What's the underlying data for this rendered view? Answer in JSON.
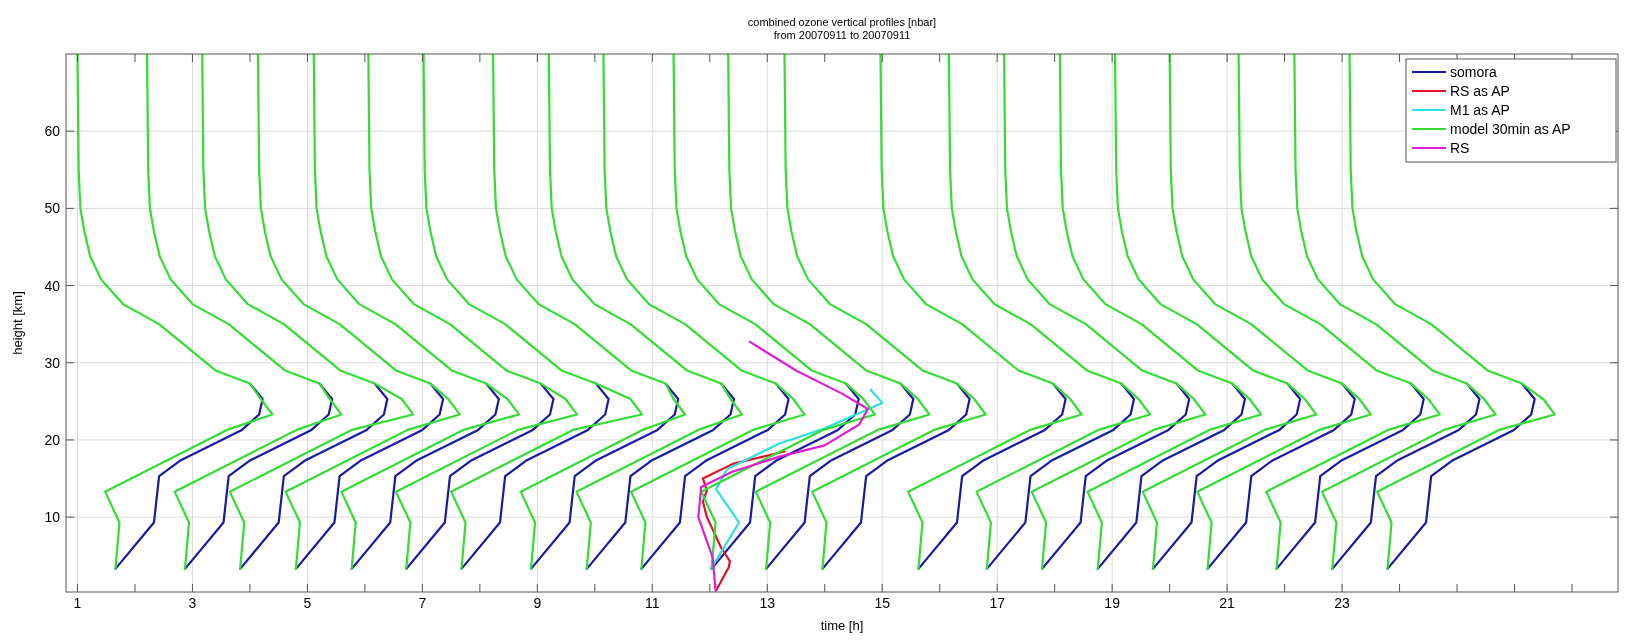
{
  "chart_data": {
    "type": "line",
    "title": "combined ozone vertical profiles [nbar]",
    "subtitle": "from 20070911 to 20070911",
    "xlabel": "time [h]",
    "ylabel": "height [km]",
    "xlim": [
      0.8,
      27.8
    ],
    "ylim": [
      0.3,
      70
    ],
    "xticks": [
      1,
      {
        "value": 2,
        "label": null
      },
      3,
      {
        "value": 4,
        "label": null
      },
      5,
      {
        "value": 6,
        "label": null
      },
      7,
      {
        "value": 8,
        "label": null
      },
      9,
      {
        "value": 10,
        "label": null
      },
      11,
      {
        "value": 12,
        "label": null
      },
      13,
      {
        "value": 14,
        "label": null
      },
      15,
      {
        "value": 16,
        "label": null
      },
      17,
      {
        "value": 18,
        "label": null
      },
      19,
      {
        "value": 20,
        "label": null
      },
      21,
      {
        "value": 22,
        "label": null
      },
      23,
      {
        "value": 24,
        "label": null
      },
      {
        "value": 25,
        "label": null
      },
      {
        "value": 26,
        "label": null
      },
      {
        "value": 27,
        "label": null
      }
    ],
    "yticks": [
      10,
      20,
      30,
      40,
      50,
      60
    ],
    "grid": true,
    "legend": "top right",
    "line_style": "solid",
    "marker": "none",
    "series": [
      {
        "name": "somora",
        "color": "#1a1aa0",
        "x": [
          1.66,
          2.33,
          2.42,
          2.78,
          3.86,
          4.16,
          4.22,
          4.0
        ],
        "values": [
          3.3,
          9.3,
          15.3,
          17.3,
          21.3,
          23.3,
          25.3,
          27.3
        ]
      },
      {
        "color": "#1a1aa0",
        "x": [
          2.87,
          3.54,
          3.63,
          3.99,
          5.07,
          5.37,
          5.43,
          5.21
        ],
        "values": [
          3.3,
          9.3,
          15.3,
          17.3,
          21.3,
          23.3,
          25.3,
          27.3
        ]
      },
      {
        "color": "#1a1aa0",
        "x": [
          3.83,
          4.5,
          4.59,
          4.95,
          6.03,
          6.33,
          6.39,
          6.17
        ],
        "values": [
          3.3,
          9.3,
          15.3,
          17.3,
          21.3,
          23.3,
          25.3,
          27.3
        ]
      },
      {
        "color": "#1a1aa0",
        "x": [
          4.8,
          5.47,
          5.56,
          5.92,
          7.0,
          7.3,
          7.36,
          7.14
        ],
        "values": [
          3.3,
          9.3,
          15.3,
          17.3,
          21.3,
          23.3,
          25.3,
          27.3
        ]
      },
      {
        "color": "#1a1aa0",
        "x": [
          5.77,
          6.44,
          6.53,
          6.89,
          7.97,
          8.27,
          8.33,
          8.11
        ],
        "values": [
          3.3,
          9.3,
          15.3,
          17.3,
          21.3,
          23.3,
          25.3,
          27.3
        ]
      },
      {
        "color": "#1a1aa0",
        "x": [
          6.72,
          7.39,
          7.48,
          7.84,
          8.92,
          9.22,
          9.28,
          9.06
        ],
        "values": [
          3.3,
          9.3,
          15.3,
          17.3,
          21.3,
          23.3,
          25.3,
          27.3
        ]
      },
      {
        "color": "#1a1aa0",
        "x": [
          7.68,
          8.35,
          8.44,
          8.8,
          9.88,
          10.18,
          10.24,
          10.02
        ],
        "values": [
          3.3,
          9.3,
          15.3,
          17.3,
          21.3,
          23.3,
          25.3,
          27.3
        ]
      },
      {
        "color": "#1a1aa0",
        "x": [
          8.89,
          9.56,
          9.65,
          10.01,
          11.09,
          11.39,
          11.45,
          11.23
        ],
        "values": [
          3.3,
          9.3,
          15.3,
          17.3,
          21.3,
          23.3,
          25.3,
          27.3
        ]
      },
      {
        "color": "#1a1aa0",
        "x": [
          9.86,
          10.53,
          10.62,
          10.98,
          12.06,
          12.36,
          12.42,
          12.2
        ],
        "values": [
          3.3,
          9.3,
          15.3,
          17.3,
          21.3,
          23.3,
          25.3,
          27.3
        ]
      },
      {
        "color": "#1a1aa0",
        "x": [
          10.81,
          11.48,
          11.57,
          11.93,
          13.01,
          13.31,
          13.37,
          13.15
        ],
        "values": [
          3.3,
          9.3,
          15.3,
          17.3,
          21.3,
          23.3,
          25.3,
          27.3
        ]
      },
      {
        "color": "#1a1aa0",
        "x": [
          12.03,
          12.7,
          12.79,
          13.15,
          14.23,
          14.53,
          14.59,
          14.37
        ],
        "values": [
          3.3,
          9.3,
          15.3,
          17.3,
          21.3,
          23.3,
          25.3,
          27.3
        ]
      },
      {
        "color": "#1a1aa0",
        "x": [
          12.98,
          13.65,
          13.74,
          14.1,
          15.18,
          15.48,
          15.54,
          15.32
        ],
        "values": [
          3.3,
          9.3,
          15.3,
          17.3,
          21.3,
          23.3,
          25.3,
          27.3
        ]
      },
      {
        "color": "#1a1aa0",
        "x": [
          13.96,
          14.63,
          14.72,
          15.08,
          16.16,
          16.46,
          16.52,
          16.3
        ],
        "values": [
          3.3,
          9.3,
          15.3,
          17.3,
          21.3,
          23.3,
          25.3,
          27.3
        ]
      },
      {
        "color": "#1a1aa0",
        "x": [
          15.63,
          16.3,
          16.39,
          16.75,
          17.83,
          18.13,
          18.19,
          17.97
        ],
        "values": [
          3.3,
          9.3,
          15.3,
          17.3,
          21.3,
          23.3,
          25.3,
          27.3
        ]
      },
      {
        "color": "#1a1aa0",
        "x": [
          16.82,
          17.49,
          17.58,
          17.94,
          19.02,
          19.32,
          19.38,
          19.16
        ],
        "values": [
          3.3,
          9.3,
          15.3,
          17.3,
          21.3,
          23.3,
          25.3,
          27.3
        ]
      },
      {
        "color": "#1a1aa0",
        "x": [
          17.78,
          18.45,
          18.54,
          18.9,
          19.98,
          20.28,
          20.34,
          20.12
        ],
        "values": [
          3.3,
          9.3,
          15.3,
          17.3,
          21.3,
          23.3,
          25.3,
          27.3
        ]
      },
      {
        "color": "#1a1aa0",
        "x": [
          18.75,
          19.42,
          19.51,
          19.87,
          20.95,
          21.25,
          21.31,
          21.09
        ],
        "values": [
          3.3,
          9.3,
          15.3,
          17.3,
          21.3,
          23.3,
          25.3,
          27.3
        ]
      },
      {
        "color": "#1a1aa0",
        "x": [
          19.71,
          20.38,
          20.47,
          20.83,
          21.91,
          22.21,
          22.27,
          22.05
        ],
        "values": [
          3.3,
          9.3,
          15.3,
          17.3,
          21.3,
          23.3,
          25.3,
          27.3
        ]
      },
      {
        "color": "#1a1aa0",
        "x": [
          20.66,
          21.33,
          21.42,
          21.78,
          22.86,
          23.16,
          23.22,
          23.0
        ],
        "values": [
          3.3,
          9.3,
          15.3,
          17.3,
          21.3,
          23.3,
          25.3,
          27.3
        ]
      },
      {
        "color": "#1a1aa0",
        "x": [
          21.86,
          22.53,
          22.62,
          22.98,
          24.06,
          24.36,
          24.42,
          24.2
        ],
        "values": [
          3.3,
          9.3,
          15.3,
          17.3,
          21.3,
          23.3,
          25.3,
          27.3
        ]
      },
      {
        "color": "#1a1aa0",
        "x": [
          22.83,
          23.5,
          23.59,
          23.95,
          25.03,
          25.33,
          25.39,
          25.17
        ],
        "values": [
          3.3,
          9.3,
          15.3,
          17.3,
          21.3,
          23.3,
          25.3,
          27.3
        ]
      },
      {
        "color": "#1a1aa0",
        "x": [
          23.79,
          24.46,
          24.55,
          24.91,
          25.99,
          26.29,
          26.35,
          26.13
        ],
        "values": [
          3.3,
          9.3,
          15.3,
          17.3,
          21.3,
          23.3,
          25.3,
          27.3
        ]
      },
      {
        "name": "RS as AP",
        "color": "#e0102a",
        "x": [
          12.11,
          12.33,
          12.35,
          12.2,
          11.95,
          11.88,
          11.95,
          11.88,
          12.4,
          13.3
        ],
        "values": [
          0.5,
          3.5,
          4.3,
          6,
          10,
          12,
          13.5,
          15,
          16.9,
          18.5
        ]
      },
      {
        "name": "M1 as AP",
        "color": "#30e0e0",
        "x": [
          12.02,
          12.51,
          12.11,
          12.3,
          13.2,
          14.0,
          15.0,
          14.8
        ],
        "values": [
          3.3,
          9.3,
          13.6,
          16.2,
          19.5,
          21.5,
          24.8,
          26.5
        ]
      },
      {
        "name": "model 30min as AP",
        "color": "#33dd33",
        "x": [
          1.66,
          1.73,
          1.48,
          3.6,
          4.39,
          4.19,
          4.0,
          3.4,
          2.42,
          1.79,
          1.41,
          1.22,
          1.12,
          1.05,
          1.02,
          1.0
        ],
        "values": [
          3.3,
          9.3,
          13.3,
          21.3,
          23.3,
          25.3,
          27.3,
          29,
          35,
          37.6,
          40.8,
          43.8,
          47,
          50,
          55,
          70
        ]
      },
      {
        "color": "#33dd33",
        "x": [
          2.87,
          2.94,
          2.69,
          4.81,
          5.59,
          5.39,
          5.21,
          4.61,
          3.63,
          3.0,
          2.62,
          2.43,
          2.33,
          2.26,
          2.23,
          2.21
        ],
        "values": [
          3.3,
          9.3,
          13.3,
          21.3,
          23.3,
          25.3,
          27.3,
          29,
          35,
          37.6,
          40.8,
          43.8,
          47,
          50,
          55,
          70
        ]
      },
      {
        "color": "#33dd33",
        "x": [
          3.83,
          3.9,
          3.65,
          5.77,
          6.84,
          6.64,
          6.17,
          5.57,
          4.59,
          3.96,
          3.58,
          3.39,
          3.29,
          3.22,
          3.19,
          3.17
        ],
        "values": [
          3.3,
          9.3,
          13.3,
          21.3,
          23.3,
          25.3,
          27.3,
          29,
          35,
          37.6,
          40.8,
          43.8,
          47,
          50,
          55,
          70
        ]
      },
      {
        "color": "#33dd33",
        "x": [
          4.8,
          4.87,
          4.62,
          6.74,
          7.65,
          7.45,
          7.14,
          6.54,
          5.56,
          4.93,
          4.55,
          4.36,
          4.26,
          4.19,
          4.16,
          4.14
        ],
        "values": [
          3.3,
          9.3,
          13.3,
          21.3,
          23.3,
          25.3,
          27.3,
          29,
          35,
          37.6,
          40.8,
          43.8,
          47,
          50,
          55,
          70
        ]
      },
      {
        "color": "#33dd33",
        "x": [
          5.77,
          5.84,
          5.59,
          7.71,
          8.68,
          8.48,
          8.11,
          7.51,
          6.53,
          5.9,
          5.52,
          5.33,
          5.23,
          5.16,
          5.13,
          5.11
        ],
        "values": [
          3.3,
          9.3,
          13.3,
          21.3,
          23.3,
          25.3,
          27.3,
          29,
          35,
          37.6,
          40.8,
          43.8,
          47,
          50,
          55,
          70
        ]
      },
      {
        "color": "#33dd33",
        "x": [
          6.72,
          6.79,
          6.54,
          8.66,
          9.69,
          9.49,
          9.06,
          8.46,
          7.48,
          6.85,
          6.47,
          6.28,
          6.18,
          6.11,
          6.08,
          6.06
        ],
        "values": [
          3.3,
          9.3,
          13.3,
          21.3,
          23.3,
          25.3,
          27.3,
          29,
          35,
          37.6,
          40.8,
          43.8,
          47,
          50,
          55,
          70
        ]
      },
      {
        "color": "#33dd33",
        "x": [
          7.68,
          7.75,
          7.5,
          9.62,
          10.82,
          10.62,
          10.02,
          9.42,
          8.44,
          7.81,
          7.43,
          7.24,
          7.14,
          7.07,
          7.04,
          7.02
        ],
        "values": [
          3.3,
          9.3,
          13.3,
          21.3,
          23.3,
          25.3,
          27.3,
          29,
          35,
          37.6,
          40.8,
          43.8,
          47,
          50,
          55,
          70
        ]
      },
      {
        "color": "#33dd33",
        "x": [
          8.89,
          8.96,
          8.71,
          10.83,
          11.57,
          11.37,
          11.23,
          10.63,
          9.65,
          9.02,
          8.64,
          8.45,
          8.35,
          8.28,
          8.25,
          8.23
        ],
        "values": [
          3.3,
          9.3,
          13.3,
          21.3,
          23.3,
          25.3,
          27.3,
          29,
          35,
          37.6,
          40.8,
          43.8,
          47,
          50,
          55,
          70
        ]
      },
      {
        "color": "#33dd33",
        "x": [
          9.86,
          9.93,
          9.68,
          11.8,
          12.56,
          12.36,
          12.2,
          11.6,
          10.62,
          9.99,
          9.61,
          9.42,
          9.32,
          9.25,
          9.22,
          9.2
        ],
        "values": [
          3.3,
          9.3,
          13.3,
          21.3,
          23.3,
          25.3,
          27.3,
          29,
          35,
          37.6,
          40.8,
          43.8,
          47,
          50,
          55,
          70
        ]
      },
      {
        "color": "#33dd33",
        "x": [
          10.81,
          10.88,
          10.63,
          12.75,
          13.65,
          13.45,
          13.15,
          12.55,
          11.57,
          10.94,
          10.56,
          10.37,
          10.27,
          10.2,
          10.17,
          10.15
        ],
        "values": [
          3.3,
          9.3,
          13.3,
          21.3,
          23.3,
          25.3,
          27.3,
          29,
          35,
          37.6,
          40.8,
          43.8,
          47,
          50,
          55,
          70
        ]
      },
      {
        "color": "#33dd33",
        "x": [
          12.03,
          12.1,
          11.85,
          13.97,
          14.87,
          14.67,
          14.37,
          13.77,
          12.79,
          12.16,
          11.78,
          11.59,
          11.49,
          11.42,
          11.39,
          11.37
        ],
        "values": [
          3.3,
          9.3,
          13.3,
          21.3,
          23.3,
          25.3,
          27.3,
          29,
          35,
          37.6,
          40.8,
          43.8,
          47,
          50,
          55,
          70
        ]
      },
      {
        "color": "#33dd33",
        "x": [
          12.98,
          13.05,
          12.8,
          14.92,
          15.82,
          15.62,
          15.32,
          14.72,
          13.74,
          13.11,
          12.73,
          12.54,
          12.44,
          12.37,
          12.34,
          12.32
        ],
        "values": [
          3.3,
          9.3,
          13.3,
          21.3,
          23.3,
          25.3,
          27.3,
          29,
          35,
          37.6,
          40.8,
          43.8,
          47,
          50,
          55,
          70
        ]
      },
      {
        "color": "#33dd33",
        "x": [
          13.96,
          14.03,
          13.78,
          15.9,
          16.8,
          16.6,
          16.3,
          15.7,
          14.72,
          14.09,
          13.71,
          13.52,
          13.42,
          13.35,
          13.32,
          13.3
        ],
        "values": [
          3.3,
          9.3,
          13.3,
          21.3,
          23.3,
          25.3,
          27.3,
          29,
          35,
          37.6,
          40.8,
          43.8,
          47,
          50,
          55,
          70
        ]
      },
      {
        "color": "#33dd33",
        "x": [
          15.63,
          15.7,
          15.45,
          17.57,
          18.47,
          18.27,
          17.97,
          17.37,
          16.39,
          15.76,
          15.38,
          15.19,
          15.09,
          15.02,
          14.99,
          14.97
        ],
        "values": [
          3.3,
          9.3,
          13.3,
          21.3,
          23.3,
          25.3,
          27.3,
          29,
          35,
          37.6,
          40.8,
          43.8,
          47,
          50,
          55,
          70
        ]
      },
      {
        "color": "#33dd33",
        "x": [
          16.82,
          16.89,
          16.64,
          18.76,
          19.66,
          19.46,
          19.16,
          18.56,
          17.58,
          16.95,
          16.57,
          16.38,
          16.28,
          16.21,
          16.18,
          16.16
        ],
        "values": [
          3.3,
          9.3,
          13.3,
          21.3,
          23.3,
          25.3,
          27.3,
          29,
          35,
          37.6,
          40.8,
          43.8,
          47,
          50,
          55,
          70
        ]
      },
      {
        "color": "#33dd33",
        "x": [
          17.78,
          17.85,
          17.6,
          19.72,
          20.62,
          20.42,
          20.12,
          19.52,
          18.54,
          17.91,
          17.53,
          17.34,
          17.24,
          17.17,
          17.14,
          17.12
        ],
        "values": [
          3.3,
          9.3,
          13.3,
          21.3,
          23.3,
          25.3,
          27.3,
          29,
          35,
          37.6,
          40.8,
          43.8,
          47,
          50,
          55,
          70
        ]
      },
      {
        "color": "#33dd33",
        "x": [
          18.75,
          18.82,
          18.57,
          20.69,
          21.59,
          21.39,
          21.09,
          20.49,
          19.51,
          18.88,
          18.5,
          18.31,
          18.21,
          18.14,
          18.11,
          18.09
        ],
        "values": [
          3.3,
          9.3,
          13.3,
          21.3,
          23.3,
          25.3,
          27.3,
          29,
          35,
          37.6,
          40.8,
          43.8,
          47,
          50,
          55,
          70
        ]
      },
      {
        "color": "#33dd33",
        "x": [
          19.71,
          19.78,
          19.53,
          21.65,
          22.55,
          22.35,
          22.05,
          21.45,
          20.47,
          19.84,
          19.46,
          19.27,
          19.17,
          19.1,
          19.07,
          19.05
        ],
        "values": [
          3.3,
          9.3,
          13.3,
          21.3,
          23.3,
          25.3,
          27.3,
          29,
          35,
          37.6,
          40.8,
          43.8,
          47,
          50,
          55,
          70
        ]
      },
      {
        "color": "#33dd33",
        "x": [
          20.66,
          20.73,
          20.48,
          22.6,
          23.5,
          23.3,
          23.0,
          22.4,
          21.42,
          20.79,
          20.41,
          20.22,
          20.12,
          20.05,
          20.02,
          20.0
        ],
        "values": [
          3.3,
          9.3,
          13.3,
          21.3,
          23.3,
          25.3,
          27.3,
          29,
          35,
          37.6,
          40.8,
          43.8,
          47,
          50,
          55,
          70
        ]
      },
      {
        "color": "#33dd33",
        "x": [
          21.86,
          21.93,
          21.68,
          23.8,
          24.7,
          24.5,
          24.2,
          23.6,
          22.62,
          21.99,
          21.61,
          21.42,
          21.32,
          21.25,
          21.22,
          21.2
        ],
        "values": [
          3.3,
          9.3,
          13.3,
          21.3,
          23.3,
          25.3,
          27.3,
          29,
          35,
          37.6,
          40.8,
          43.8,
          47,
          50,
          55,
          70
        ]
      },
      {
        "color": "#33dd33",
        "x": [
          22.83,
          22.9,
          22.65,
          24.77,
          25.67,
          25.47,
          25.17,
          24.57,
          23.59,
          22.96,
          22.58,
          22.39,
          22.29,
          22.22,
          22.19,
          22.17
        ],
        "values": [
          3.3,
          9.3,
          13.3,
          21.3,
          23.3,
          25.3,
          27.3,
          29,
          35,
          37.6,
          40.8,
          43.8,
          47,
          50,
          55,
          70
        ]
      },
      {
        "color": "#33dd33",
        "x": [
          23.79,
          23.86,
          23.61,
          25.73,
          26.7,
          26.5,
          26.13,
          25.53,
          24.55,
          23.92,
          23.54,
          23.35,
          23.25,
          23.18,
          23.15,
          23.13
        ],
        "values": [
          3.3,
          9.3,
          13.3,
          21.3,
          23.3,
          25.3,
          27.3,
          29,
          35,
          37.6,
          40.8,
          43.8,
          47,
          50,
          55,
          70
        ]
      },
      {
        "name": "RS",
        "color": "#e020d0",
        "x": [
          12.1,
          12.05,
          11.8,
          11.85,
          12.4,
          13.2,
          14.0,
          14.6,
          14.75,
          14.3,
          13.5,
          12.7
        ],
        "values": [
          0.5,
          4.8,
          10,
          13.9,
          15.9,
          17.8,
          19.3,
          22,
          24,
          26,
          29,
          32.7
        ]
      }
    ]
  }
}
